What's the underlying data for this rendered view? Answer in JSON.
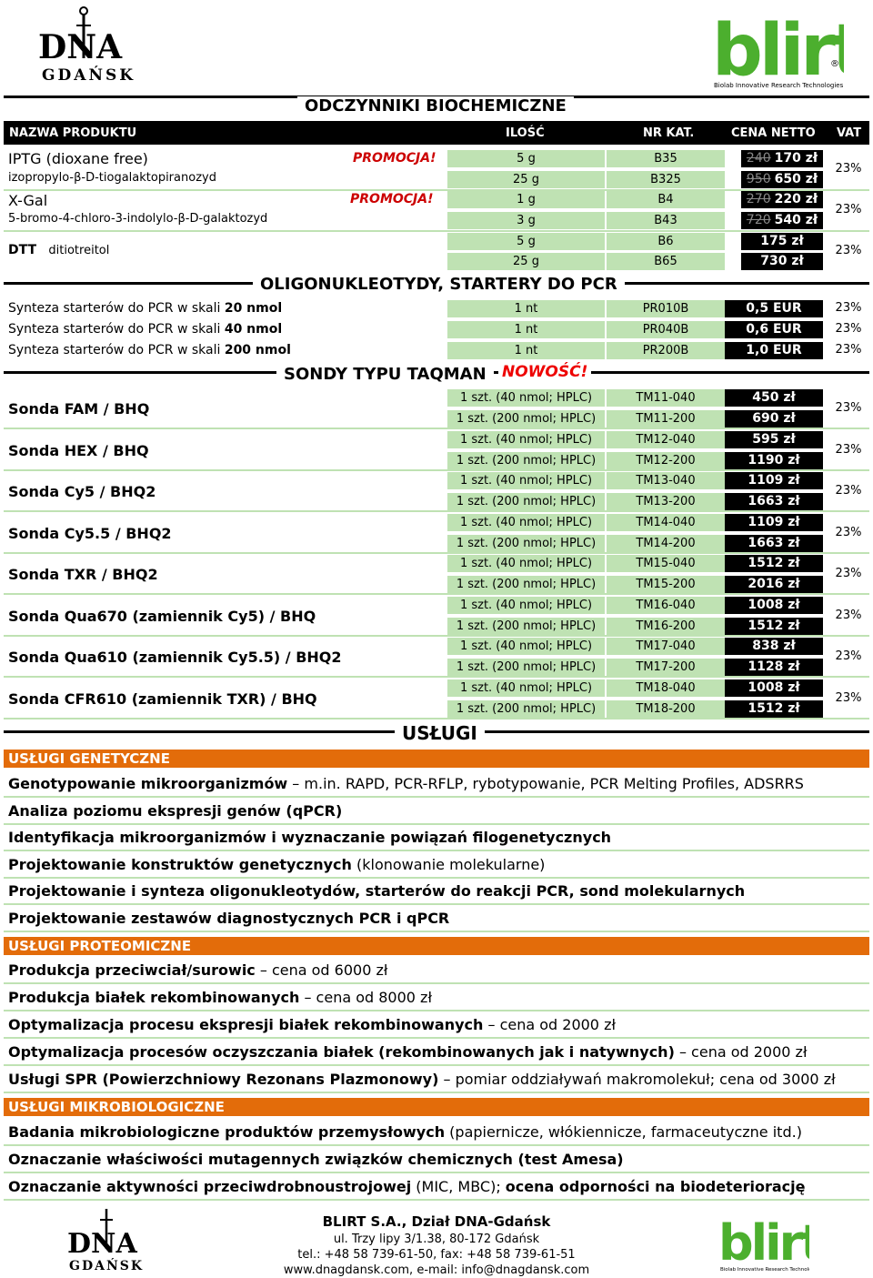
{
  "header": {
    "dna_logo_text1": "DNA",
    "dna_logo_text2": "GDAŃSK",
    "blirt_logo_text": "blirt",
    "blirt_tagline": "Biolab Innovative Research Technologies"
  },
  "sections": {
    "biochem": "ODCZYNNIKI BIOCHEMICZNE",
    "oligo": "OLIGONUKLEOTYDY, STARTERY DO PCR",
    "taqman": "SONDY TYPU TAQMAN",
    "nowosc": "NOWOŚĆ!",
    "uslugi": "USŁUGI"
  },
  "columns": {
    "name": "NAZWA PRODUKTU",
    "qty": "ILOŚĆ",
    "cat": "NR KAT.",
    "price": "CENA NETTO",
    "vat": "VAT"
  },
  "biochem": [
    {
      "name": "IPTG (dioxane free)",
      "sub": "izopropylo-β-D-tiogalaktopiranozyd",
      "promo": "PROMOCJA!",
      "rows": [
        {
          "qty": "5 g",
          "cat": "B35",
          "old": "240",
          "price": "170 zł"
        },
        {
          "qty": "25 g",
          "cat": "B325",
          "old": "950",
          "price": "650 zł"
        }
      ],
      "vat": "23%"
    },
    {
      "name": "X-Gal",
      "sub": "5-bromo-4-chloro-3-indolylo-β-D-galaktozyd",
      "promo": "PROMOCJA!",
      "rows": [
        {
          "qty": "1 g",
          "cat": "B4",
          "old": "270",
          "price": "220 zł"
        },
        {
          "qty": "3 g",
          "cat": "B43",
          "old": "720",
          "price": "540 zł"
        }
      ],
      "vat": "23%"
    },
    {
      "name": "DTT",
      "sub": "ditiotreitol",
      "promo": "",
      "rows": [
        {
          "qty": "5 g",
          "cat": "B6",
          "old": "",
          "price": "175 zł"
        },
        {
          "qty": "25 g",
          "cat": "B65",
          "old": "",
          "price": "730 zł"
        }
      ],
      "vat": "23%"
    }
  ],
  "oligo": [
    {
      "label": "Synteza starterów do PCR w skali ",
      "bold": "20 nmol",
      "qty": "1 nt",
      "cat": "PR010B",
      "price": "0,5 EUR",
      "vat": "23%"
    },
    {
      "label": "Synteza starterów do PCR w skali ",
      "bold": "40 nmol",
      "qty": "1 nt",
      "cat": "PR040B",
      "price": "0,6 EUR",
      "vat": "23%"
    },
    {
      "label": "Synteza starterów do PCR w skali ",
      "bold": "200 nmol",
      "qty": "1 nt",
      "cat": "PR200B",
      "price": "1,0 EUR",
      "vat": "23%"
    }
  ],
  "probes": [
    {
      "name": "Sonda FAM / BHQ",
      "rows": [
        {
          "qty": "1 szt. (40 nmol; HPLC)",
          "cat": "TM11-040",
          "price": "450 zł"
        },
        {
          "qty": "1 szt. (200 nmol; HPLC)",
          "cat": "TM11-200",
          "price": "690 zł"
        }
      ],
      "vat": "23%"
    },
    {
      "name": "Sonda HEX / BHQ",
      "rows": [
        {
          "qty": "1 szt. (40 nmol; HPLC)",
          "cat": "TM12-040",
          "price": "595 zł"
        },
        {
          "qty": "1 szt. (200 nmol; HPLC)",
          "cat": "TM12-200",
          "price": "1190 zł"
        }
      ],
      "vat": "23%"
    },
    {
      "name": "Sonda Cy5 / BHQ2",
      "rows": [
        {
          "qty": "1 szt. (40 nmol; HPLC)",
          "cat": "TM13-040",
          "price": "1109 zł"
        },
        {
          "qty": "1 szt. (200 nmol; HPLC)",
          "cat": "TM13-200",
          "price": "1663 zł"
        }
      ],
      "vat": "23%"
    },
    {
      "name": "Sonda Cy5.5 / BHQ2",
      "rows": [
        {
          "qty": "1 szt. (40 nmol; HPLC)",
          "cat": "TM14-040",
          "price": "1109 zł"
        },
        {
          "qty": "1 szt. (200 nmol; HPLC)",
          "cat": "TM14-200",
          "price": "1663 zł"
        }
      ],
      "vat": "23%"
    },
    {
      "name": "Sonda TXR / BHQ2",
      "rows": [
        {
          "qty": "1 szt. (40 nmol; HPLC)",
          "cat": "TM15-040",
          "price": "1512 zł"
        },
        {
          "qty": "1 szt. (200 nmol; HPLC)",
          "cat": "TM15-200",
          "price": "2016 zł"
        }
      ],
      "vat": "23%"
    },
    {
      "name": "Sonda Qua670 (zamiennik Cy5) / BHQ",
      "rows": [
        {
          "qty": "1 szt. (40 nmol; HPLC)",
          "cat": "TM16-040",
          "price": "1008 zł"
        },
        {
          "qty": "1 szt. (200 nmol; HPLC)",
          "cat": "TM16-200",
          "price": "1512 zł"
        }
      ],
      "vat": "23%"
    },
    {
      "name": "Sonda Qua610 (zamiennik Cy5.5) / BHQ2",
      "rows": [
        {
          "qty": "1 szt. (40 nmol; HPLC)",
          "cat": "TM17-040",
          "price": "838 zł"
        },
        {
          "qty": "1 szt. (200 nmol; HPLC)",
          "cat": "TM17-200",
          "price": "1128 zł"
        }
      ],
      "vat": "23%"
    },
    {
      "name": "Sonda CFR610 (zamiennik TXR) / BHQ",
      "rows": [
        {
          "qty": "1 szt. (40 nmol; HPLC)",
          "cat": "TM18-040",
          "price": "1008 zł"
        },
        {
          "qty": "1 szt. (200 nmol; HPLC)",
          "cat": "TM18-200",
          "price": "1512 zł"
        }
      ],
      "vat": "23%"
    }
  ],
  "services": {
    "genetic_title": "USŁUGI GENETYCZNE",
    "genetic": [
      {
        "bold": "Genotypowanie mikroorganizmów",
        "rest": " – m.in. RAPD, PCR-RFLP, rybotypowanie, PCR Melting Profiles, ADSRRS"
      },
      {
        "bold": "Analiza poziomu ekspresji genów (qPCR)",
        "rest": ""
      },
      {
        "bold": "Identyfikacja mikroorganizmów i wyznaczanie powiązań filogenetycznych",
        "rest": ""
      },
      {
        "bold": "Projektowanie konstruktów genetycznych",
        "rest": " (klonowanie molekularne)"
      },
      {
        "bold": "Projektowanie i synteza oligonukleotydów, starterów do reakcji PCR, sond molekularnych",
        "rest": ""
      },
      {
        "bold": "Projektowanie zestawów diagnostycznych PCR i qPCR",
        "rest": ""
      }
    ],
    "proteomic_title": "USŁUGI PROTEOMICZNE",
    "proteomic": [
      {
        "bold": "Produkcja przeciwciał/surowic",
        "rest": " – cena od 6000 zł"
      },
      {
        "bold": "Produkcja białek rekombinowanych",
        "rest": " – cena od 8000 zł"
      },
      {
        "bold": "Optymalizacja procesu ekspresji białek rekombinowanych",
        "rest": " – cena od 2000 zł"
      },
      {
        "bold": "Optymalizacja procesów oczyszczania białek (rekombinowanych jak i natywnych)",
        "rest": " – cena od 2000 zł"
      },
      {
        "bold": "Usługi SPR (Powierzchniowy Rezonans Plazmonowy)",
        "rest": " – pomiar oddziaływań makromolekuł; cena od 3000 zł"
      }
    ],
    "micro_title": "USŁUGI MIKROBIOLOGICZNE",
    "micro": [
      {
        "bold": "Badania mikrobiologiczne produktów przemysłowych",
        "rest": " (papiernicze, włókiennicze, farmaceutyczne itd.)"
      },
      {
        "bold": "Oznaczanie właściwości mutagennych związków chemicznych (test Amesa)",
        "rest": ""
      },
      {
        "bold": "Oznaczanie aktywności przeciwdrobnoustrojowej",
        "rest": " (MIC, MBC); ",
        "bold2": "ocena odporności na biodeteriorację"
      }
    ]
  },
  "footer": {
    "company": "BLIRT S.A., Dział DNA-Gdańsk",
    "address": "ul. Trzy lipy 3/1.38,  80-172 Gdańsk",
    "phone": "tel.: +48 58 739-61-50,   fax: +48 58 739-61-51",
    "web": "www.dnagdansk.com,   e-mail: info@dnagdansk.com"
  },
  "colors": {
    "green": "#bfe2b3",
    "orange": "#e36c0a",
    "black": "#000000",
    "promo_red": "#cc0000",
    "blirt_green": "#4caf2e"
  }
}
